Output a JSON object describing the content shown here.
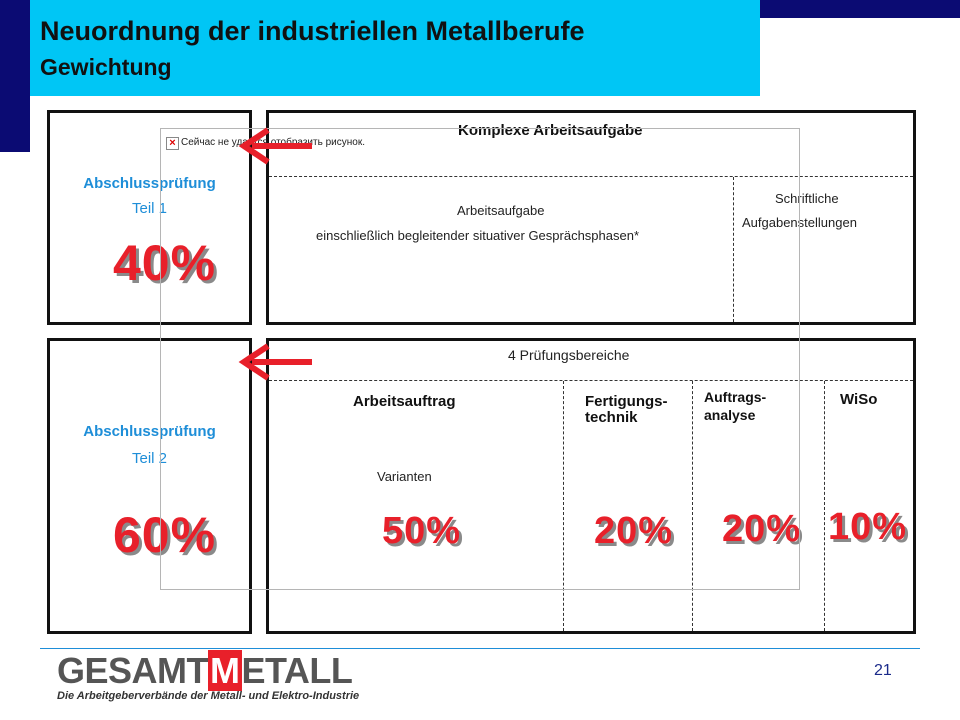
{
  "header": {
    "title": "Neuordnung der industriellen Metallberufe",
    "subtitle": "Gewichtung"
  },
  "part1": {
    "label": "Abschlussprüfung",
    "sublabel": "Teil 1",
    "percent": "40%",
    "main_title": "Komplexe Arbeitsaufgabe",
    "left_line1": "Arbeitsaufgabe",
    "left_line2": "einschließlich begleitender situativer Gesprächsphasen*",
    "right_line1": "Schriftliche",
    "right_line2": "Aufgabenstellungen"
  },
  "part2": {
    "label": "Abschlussprüfung",
    "sublabel": "Teil 2",
    "percent": "60%",
    "main_title": "4 Prüfungsbereiche",
    "areas": [
      {
        "label": "Arbeitsauftrag",
        "percent": "50%"
      },
      {
        "label_line1": "Fertigungs-",
        "label_line2": "technik",
        "percent": "20%"
      },
      {
        "label_line1": "Auftrags-",
        "label_line2": "analyse",
        "percent": "20%"
      },
      {
        "label": "WiSo",
        "percent": "10%"
      }
    ],
    "variants_label": "Varianten"
  },
  "placeholder": {
    "text": "Сейчас не удается отобразить рисунок."
  },
  "footer": {
    "page_number": "21",
    "logo_text_1": "GESAMT",
    "logo_text_2": "M",
    "logo_text_3": "ETALL",
    "logo_subtitle": "Die Arbeitgeberverbände der Metall- und Elektro-Industrie"
  },
  "colors": {
    "header_bg": "#00c6f5",
    "dark_blue": "#0b0b73",
    "label_blue": "#1e8ed8",
    "percent_red": "#e8202a",
    "arrow_red": "#e8202a"
  },
  "icons": {
    "arrow": "left-arrow-icon",
    "broken_image": "broken-image-icon"
  }
}
